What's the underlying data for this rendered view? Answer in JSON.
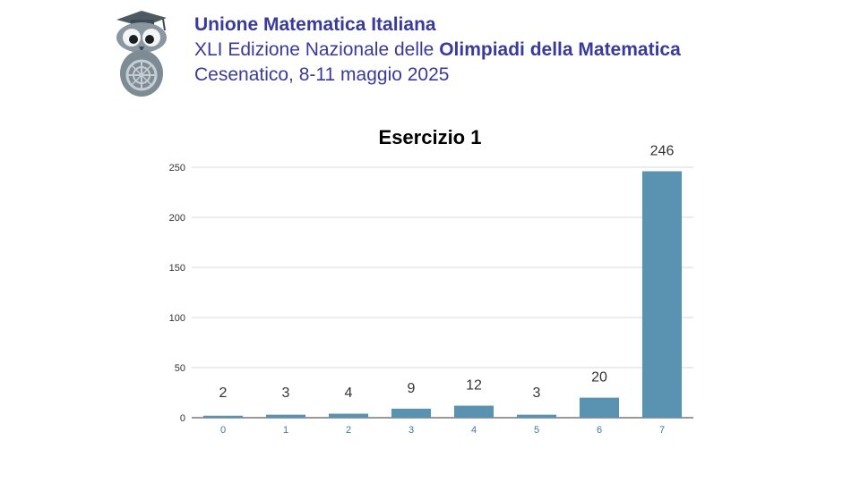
{
  "header": {
    "organization": "Unione Matematica Italiana",
    "edition_prefix": "XLI Edizione Nazionale delle",
    "edition_bold": "Olimpiadi della Matematica",
    "location_date": "Cesenatico, 8-11 maggio 2025"
  },
  "logo": {
    "icon": "owl-mascot-icon"
  },
  "chart_data": {
    "type": "bar",
    "title": "Esercizio 1",
    "xlabel": "",
    "ylabel": "",
    "categories": [
      "0",
      "1",
      "2",
      "3",
      "4",
      "5",
      "6",
      "7"
    ],
    "values": [
      2,
      3,
      4,
      9,
      12,
      3,
      20,
      246
    ],
    "ylim": [
      0,
      250
    ],
    "yticks": [
      0,
      50,
      100,
      150,
      200,
      250
    ],
    "grid": true,
    "legend": "none",
    "colors": {
      "bar": "#5a93b2",
      "grid": "#d9d9d9",
      "xtick": "#3a7a9a",
      "text": "#333333"
    }
  }
}
